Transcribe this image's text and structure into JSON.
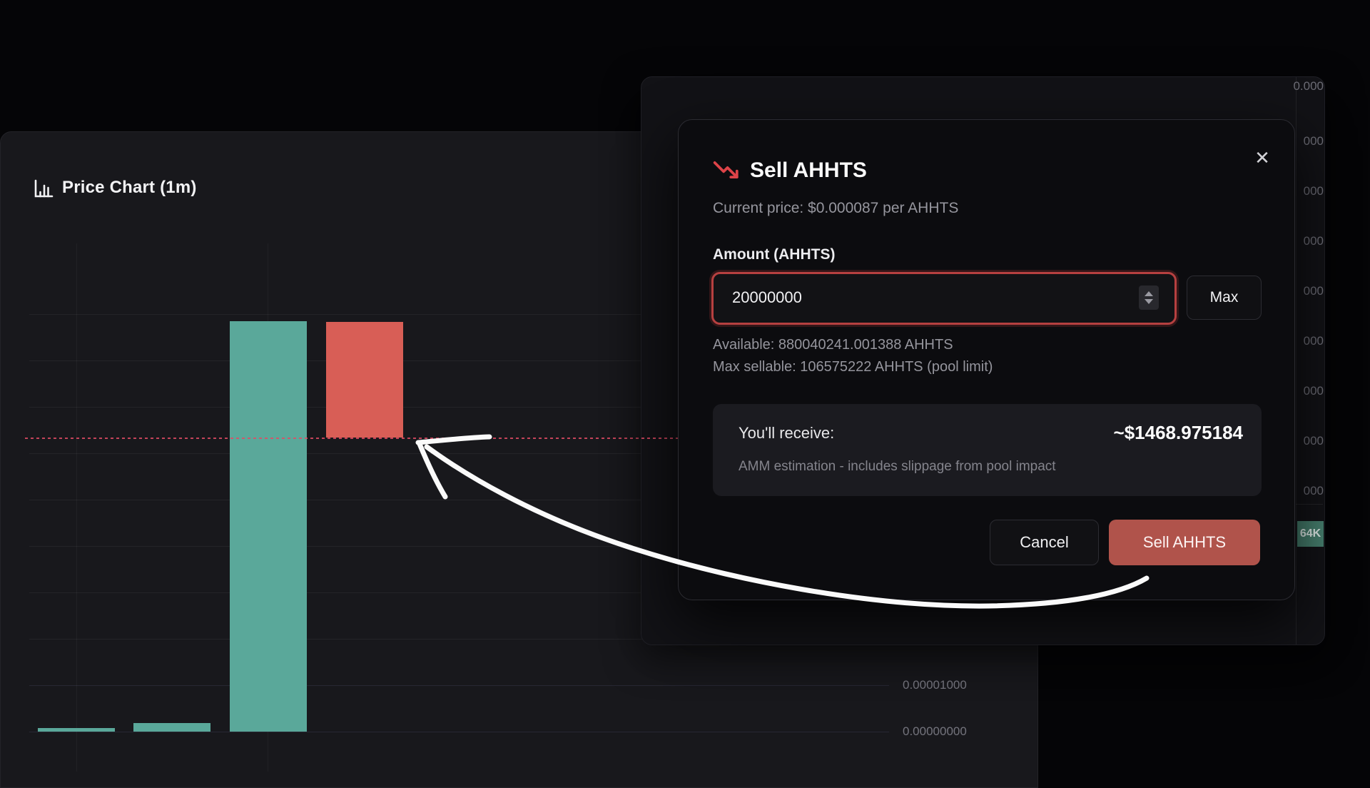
{
  "price_chart_panel": {
    "title": "Price Chart (1m)"
  },
  "chart_data": {
    "type": "bar",
    "title": "Price Chart (1m)",
    "interval": "1m",
    "ylim": [
      0,
      0.000115
    ],
    "grid": "on",
    "unit_per_gridline": 1e-05,
    "y_axis_labels": [
      {
        "text": "0.00001000",
        "value": 1e-05
      },
      {
        "text": "0.00000000",
        "value": 0.0
      }
    ],
    "current_price_line": 6.34e-05,
    "candles": [
      {
        "dir": "up",
        "low": 0.0,
        "high": 8e-07
      },
      {
        "dir": "up",
        "low": 0.0,
        "high": 1.8e-06
      },
      {
        "dir": "up",
        "low": 0.0,
        "high": 8.85e-05
      },
      {
        "dir": "down",
        "low": 6.34e-05,
        "high": 8.83e-05
      }
    ],
    "colors": {
      "up": "#5aa89a",
      "down": "#d85e56",
      "price_line": "#cf4960"
    }
  },
  "background_panel": {
    "axis_fragments": [
      "0.000",
      "000",
      "000",
      "000",
      "000",
      "000",
      "000",
      "000",
      "000"
    ],
    "volume_badge": "64K"
  },
  "modal": {
    "title": "Sell AHHTS",
    "close_icon": "✕",
    "subtitle": "Current price: $0.000087 per AHHTS",
    "amount_label": "Amount (AHHTS)",
    "amount_value": "20000000",
    "max_button": "Max",
    "available": "Available: 880040241.001388 AHHTS",
    "max_sellable": "Max sellable: 106575222 AHHTS (pool limit)",
    "receive_label": "You'll receive:",
    "receive_value": "~$1468.975184",
    "receive_note": "AMM estimation - includes slippage from pool impact",
    "cancel_button": "Cancel",
    "sell_button": "Sell AHHTS",
    "accent_red": "#b0534b",
    "input_border_red": "#b64040",
    "trend_icon_red": "#dd4348"
  }
}
